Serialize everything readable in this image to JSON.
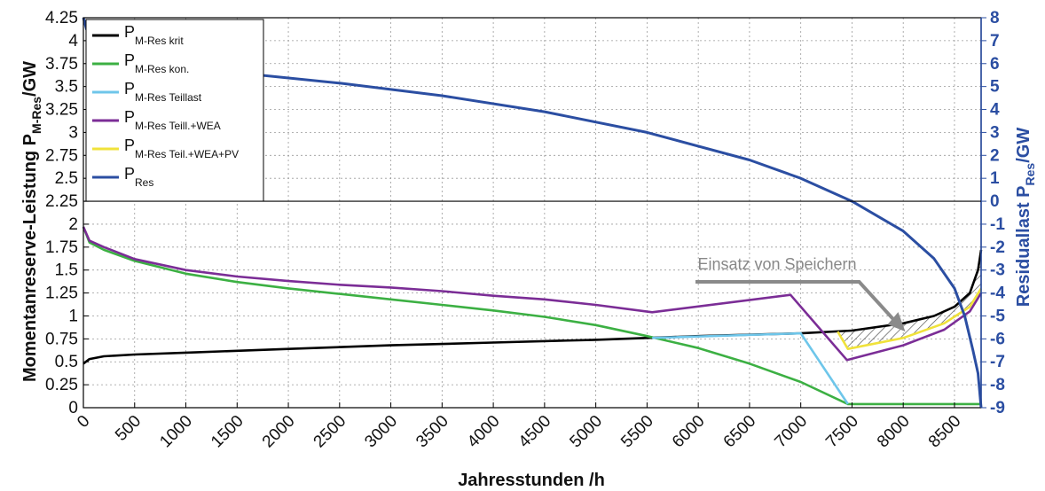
{
  "chart_data": {
    "type": "line",
    "xlabel": "Jahresstunden /h",
    "ylabel_left": {
      "main": "Momentanreserve-Leistung P",
      "sub": "M-Res",
      "unit": "/GW"
    },
    "ylabel_right": {
      "main": "Residuallast P",
      "sub": "Res",
      "unit": "/GW"
    },
    "xlim": [
      0,
      8760
    ],
    "ylim_left": [
      0,
      4.25
    ],
    "ylim_right": [
      -9,
      8
    ],
    "x_ticks": [
      0,
      500,
      1000,
      1500,
      2000,
      2500,
      3000,
      3500,
      4000,
      4500,
      5000,
      5500,
      6000,
      6500,
      7000,
      7500,
      8000,
      8500
    ],
    "x_tick_labels": [
      "0",
      "500",
      "1000",
      "1500",
      "2000",
      "2500",
      "3000",
      "3500",
      "4000",
      "4500",
      "5000",
      "5500",
      "6000",
      "6500",
      "7000",
      "7500",
      "8000",
      "8500"
    ],
    "y_ticks_left": [
      0,
      0.25,
      0.5,
      0.75,
      1,
      1.25,
      1.5,
      1.75,
      2,
      2.25,
      2.5,
      2.75,
      3,
      3.25,
      3.5,
      3.75,
      4,
      4.25
    ],
    "y_tick_labels_left": [
      "0",
      "0.25",
      "0.5",
      "0.75",
      "1",
      "1.25",
      "1.5",
      "1.75",
      "2",
      "2.25",
      "2.5",
      "2.75",
      "3",
      "3.25",
      "3.5",
      "3.75",
      "4",
      "4.25"
    ],
    "y_ticks_right": [
      -9,
      -8,
      -7,
      -6,
      -5,
      -4,
      -3,
      -2,
      -1,
      0,
      1,
      2,
      3,
      4,
      5,
      6,
      7,
      8
    ],
    "y_tick_labels_right": [
      "-9",
      "-8",
      "-7",
      "-6",
      "-5",
      "-4",
      "-3",
      "-2",
      "-1",
      "0",
      "1",
      "2",
      "3",
      "4",
      "5",
      "6",
      "7",
      "8"
    ],
    "grid": true,
    "legend_position": "top-left",
    "horizontal_line": {
      "axis": "right",
      "y": 0
    },
    "series": [
      {
        "name": "P",
        "sub": "M-Res krit",
        "color": "#000000",
        "axis": "left",
        "points": [
          [
            0,
            0.48
          ],
          [
            60,
            0.53
          ],
          [
            200,
            0.56
          ],
          [
            500,
            0.58
          ],
          [
            1000,
            0.6
          ],
          [
            2000,
            0.64
          ],
          [
            3000,
            0.68
          ],
          [
            4000,
            0.71
          ],
          [
            5000,
            0.74
          ],
          [
            6000,
            0.78
          ],
          [
            7000,
            0.81
          ],
          [
            7500,
            0.84
          ],
          [
            8000,
            0.92
          ],
          [
            8300,
            1.0
          ],
          [
            8500,
            1.1
          ],
          [
            8650,
            1.25
          ],
          [
            8730,
            1.5
          ],
          [
            8760,
            1.72
          ]
        ]
      },
      {
        "name": "P",
        "sub": "M-Res kon.",
        "color": "#3cb043",
        "axis": "left",
        "points": [
          [
            0,
            1.97
          ],
          [
            60,
            1.8
          ],
          [
            200,
            1.72
          ],
          [
            500,
            1.6
          ],
          [
            1000,
            1.46
          ],
          [
            1500,
            1.37
          ],
          [
            2000,
            1.3
          ],
          [
            2500,
            1.24
          ],
          [
            3000,
            1.18
          ],
          [
            3500,
            1.12
          ],
          [
            4000,
            1.06
          ],
          [
            4500,
            0.99
          ],
          [
            5000,
            0.9
          ],
          [
            5500,
            0.78
          ],
          [
            6000,
            0.65
          ],
          [
            6500,
            0.48
          ],
          [
            7000,
            0.28
          ],
          [
            7460,
            0.04
          ],
          [
            8760,
            0.04
          ]
        ]
      },
      {
        "name": "P",
        "sub": "M-Res Teillast",
        "color": "#6ec6ea",
        "axis": "left",
        "points": [
          [
            5550,
            0.76
          ],
          [
            7000,
            0.81
          ],
          [
            7460,
            0.04
          ]
        ]
      },
      {
        "name": "P",
        "sub": "M-Res Teill.+WEA",
        "color": "#7b2d96",
        "axis": "left",
        "points": [
          [
            0,
            1.97
          ],
          [
            60,
            1.82
          ],
          [
            200,
            1.75
          ],
          [
            500,
            1.62
          ],
          [
            1000,
            1.5
          ],
          [
            1500,
            1.43
          ],
          [
            2000,
            1.38
          ],
          [
            2500,
            1.34
          ],
          [
            3000,
            1.31
          ],
          [
            3500,
            1.27
          ],
          [
            4000,
            1.22
          ],
          [
            4500,
            1.18
          ],
          [
            5000,
            1.12
          ],
          [
            5550,
            1.04
          ],
          [
            6900,
            1.23
          ],
          [
            7450,
            0.52
          ],
          [
            8000,
            0.68
          ],
          [
            8400,
            0.85
          ],
          [
            8650,
            1.05
          ],
          [
            8760,
            1.25
          ]
        ]
      },
      {
        "name": "P",
        "sub": "M-Res Teil.+WEA+PV",
        "color": "#f0e23a",
        "axis": "left",
        "points": [
          [
            7360,
            0.83
          ],
          [
            7460,
            0.64
          ],
          [
            8000,
            0.76
          ],
          [
            8400,
            0.92
          ],
          [
            8650,
            1.1
          ],
          [
            8760,
            1.3
          ]
        ]
      },
      {
        "name": "P",
        "sub": "Res",
        "color": "#2b4ea2",
        "axis": "right",
        "points": [
          [
            0,
            8.0
          ],
          [
            30,
            7.5
          ],
          [
            100,
            7.0
          ],
          [
            300,
            6.5
          ],
          [
            800,
            6.0
          ],
          [
            1500,
            5.6
          ],
          [
            2500,
            5.15
          ],
          [
            3500,
            4.6
          ],
          [
            4500,
            3.9
          ],
          [
            5500,
            3.0
          ],
          [
            6500,
            1.8
          ],
          [
            7000,
            1.0
          ],
          [
            7500,
            0.0
          ],
          [
            8000,
            -1.3
          ],
          [
            8300,
            -2.5
          ],
          [
            8500,
            -3.8
          ],
          [
            8600,
            -5.0
          ],
          [
            8680,
            -6.5
          ],
          [
            8730,
            -7.5
          ],
          [
            8760,
            -9.0
          ]
        ]
      }
    ],
    "annotation": {
      "text": "Einsatz von Speichern",
      "arrow_to": [
        8020,
        0.83
      ],
      "shaded_region_between": [
        "M-Res krit",
        "M-Res Teil.+WEA+PV"
      ],
      "shaded_x_range": [
        7360,
        8760
      ]
    }
  }
}
